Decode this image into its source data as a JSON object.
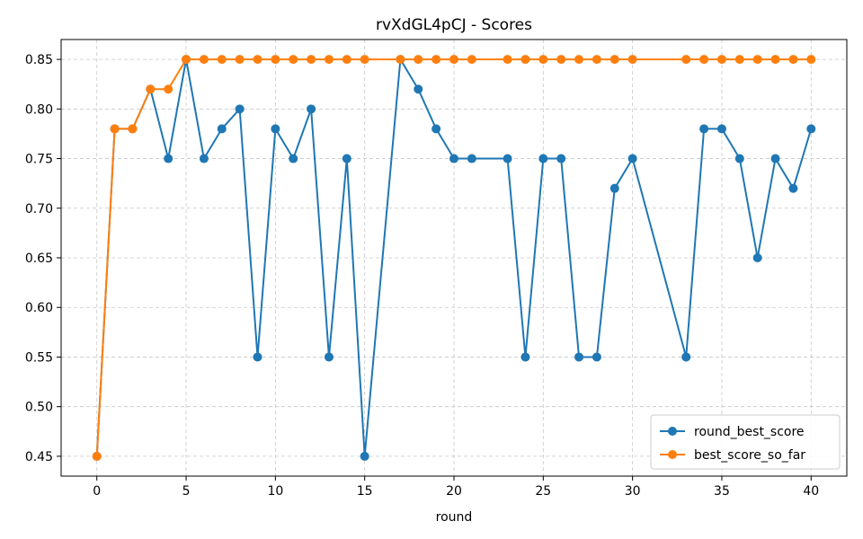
{
  "chart_data": {
    "type": "line",
    "title": "rvXdGL4pCJ - Scores",
    "xlabel": "round",
    "ylabel": "",
    "xlim": [
      -2,
      42
    ],
    "ylim": [
      0.43,
      0.87
    ],
    "xticks": [
      0,
      5,
      10,
      15,
      20,
      25,
      30,
      35,
      40
    ],
    "yticks": [
      0.45,
      0.5,
      0.55,
      0.6,
      0.65,
      0.7,
      0.75,
      0.8,
      0.85
    ],
    "grid": true,
    "legend_position": "bottom-right",
    "x": [
      0,
      1,
      2,
      3,
      4,
      5,
      6,
      7,
      8,
      9,
      10,
      11,
      12,
      13,
      14,
      15,
      17,
      18,
      19,
      20,
      21,
      23,
      24,
      25,
      26,
      27,
      28,
      29,
      30,
      33,
      34,
      35,
      36,
      37,
      38,
      39,
      40
    ],
    "series": [
      {
        "name": "round_best_score",
        "color": "#1f77b4",
        "values": [
          0.45,
          0.78,
          0.78,
          0.82,
          0.75,
          0.85,
          0.75,
          0.78,
          0.8,
          0.55,
          0.78,
          0.75,
          0.8,
          0.55,
          0.75,
          0.45,
          0.85,
          0.82,
          0.78,
          0.75,
          0.75,
          0.75,
          0.55,
          0.75,
          0.75,
          0.55,
          0.55,
          0.72,
          0.75,
          0.55,
          0.78,
          0.78,
          0.75,
          0.65,
          0.75,
          0.72,
          0.78
        ]
      },
      {
        "name": "best_score_so_far",
        "color": "#ff7f0e",
        "values": [
          0.45,
          0.78,
          0.78,
          0.82,
          0.82,
          0.85,
          0.85,
          0.85,
          0.85,
          0.85,
          0.85,
          0.85,
          0.85,
          0.85,
          0.85,
          0.85,
          0.85,
          0.85,
          0.85,
          0.85,
          0.85,
          0.85,
          0.85,
          0.85,
          0.85,
          0.85,
          0.85,
          0.85,
          0.85,
          0.85,
          0.85,
          0.85,
          0.85,
          0.85,
          0.85,
          0.85,
          0.85
        ]
      }
    ]
  }
}
